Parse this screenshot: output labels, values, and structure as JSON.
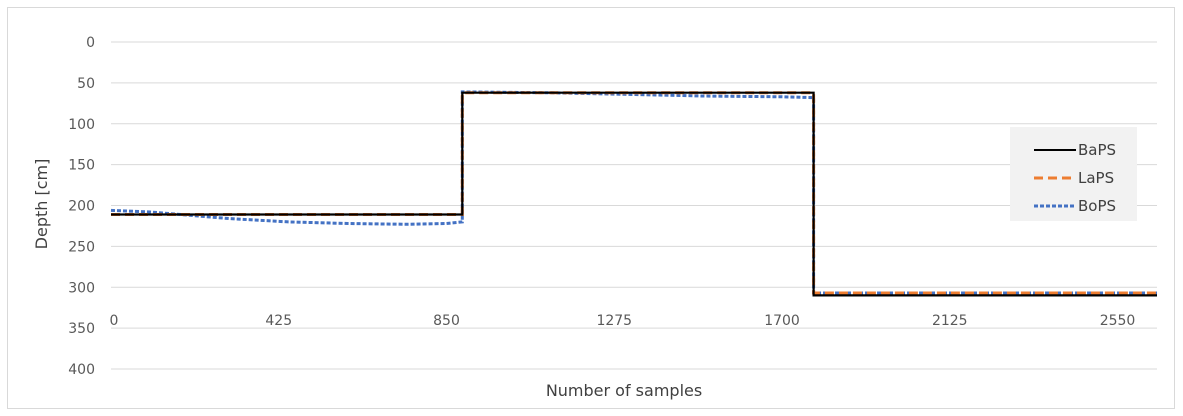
{
  "chart_data": {
    "type": "line",
    "title": "",
    "xlabel": "Number of samples",
    "ylabel": "Depth [cm]",
    "xlim": [
      0,
      2650
    ],
    "ylim": [
      0,
      400
    ],
    "y_reversed": true,
    "x_ticks": [
      "0",
      "425",
      "850",
      "1275",
      "1700",
      "2125",
      "2550"
    ],
    "y_ticks": [
      "0",
      "50",
      "100",
      "150",
      "200",
      "250",
      "300",
      "350",
      "400"
    ],
    "grid": "horizontal",
    "legend_position": "right",
    "series": [
      {
        "name": "BaPS",
        "color": "#000000",
        "dash": "solid",
        "x": [
          0,
          890,
          890,
          1780,
          1780,
          2650
        ],
        "y": [
          211,
          211,
          62,
          62,
          310,
          310
        ]
      },
      {
        "name": "LaPS",
        "color": "#ED7D31",
        "dash": "dash",
        "x": [
          0,
          890,
          890,
          1780,
          1780,
          2650
        ],
        "y": [
          211,
          211,
          62,
          62,
          307,
          307
        ]
      },
      {
        "name": "BoPS",
        "color": "#4472C4",
        "dash": "dot",
        "x": [
          0,
          100,
          200,
          300,
          450,
          600,
          750,
          850,
          890,
          890,
          1100,
          1300,
          1500,
          1700,
          1780,
          1780,
          2650
        ],
        "y": [
          206,
          208,
          212,
          216,
          220,
          222,
          223,
          222,
          220,
          61,
          62,
          64,
          66,
          67,
          68,
          307,
          307
        ]
      }
    ]
  }
}
